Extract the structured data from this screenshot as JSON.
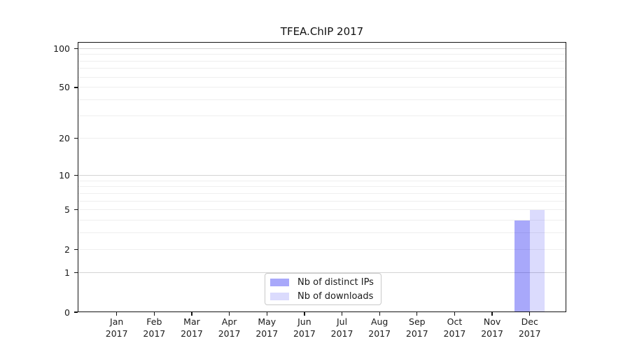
{
  "chart_data": {
    "type": "bar",
    "title": "TFEA.ChIP 2017",
    "x_tick_labels": [
      [
        "Jan",
        "2017"
      ],
      [
        "Feb",
        "2017"
      ],
      [
        "Mar",
        "2017"
      ],
      [
        "Apr",
        "2017"
      ],
      [
        "May",
        "2017"
      ],
      [
        "Jun",
        "2017"
      ],
      [
        "Jul",
        "2017"
      ],
      [
        "Aug",
        "2017"
      ],
      [
        "Sep",
        "2017"
      ],
      [
        "Oct",
        "2017"
      ],
      [
        "Nov",
        "2017"
      ],
      [
        "Dec",
        "2017"
      ]
    ],
    "series": [
      {
        "name": "Nb of distinct IPs",
        "color": "rgba(0,0,240,0.34)",
        "values": [
          0,
          0,
          0,
          0,
          0,
          0,
          0,
          0,
          0,
          0,
          0,
          4
        ]
      },
      {
        "name": "Nb of downloads",
        "color": "rgba(0,0,240,0.14)",
        "values": [
          0,
          0,
          0,
          0,
          0,
          0,
          0,
          0,
          0,
          0,
          0,
          5
        ]
      }
    ],
    "y_axis": {
      "scale": "log10(value+1)",
      "ticks": [
        0,
        1,
        2,
        5,
        10,
        20,
        50,
        100
      ],
      "major_gridlines": [
        1,
        10,
        100
      ],
      "minor_gridlines": [
        2,
        3,
        4,
        5,
        6,
        7,
        8,
        9,
        20,
        30,
        40,
        50,
        60,
        70,
        80,
        90
      ]
    },
    "legend": {
      "position": "bottom-center"
    },
    "grid": true
  }
}
